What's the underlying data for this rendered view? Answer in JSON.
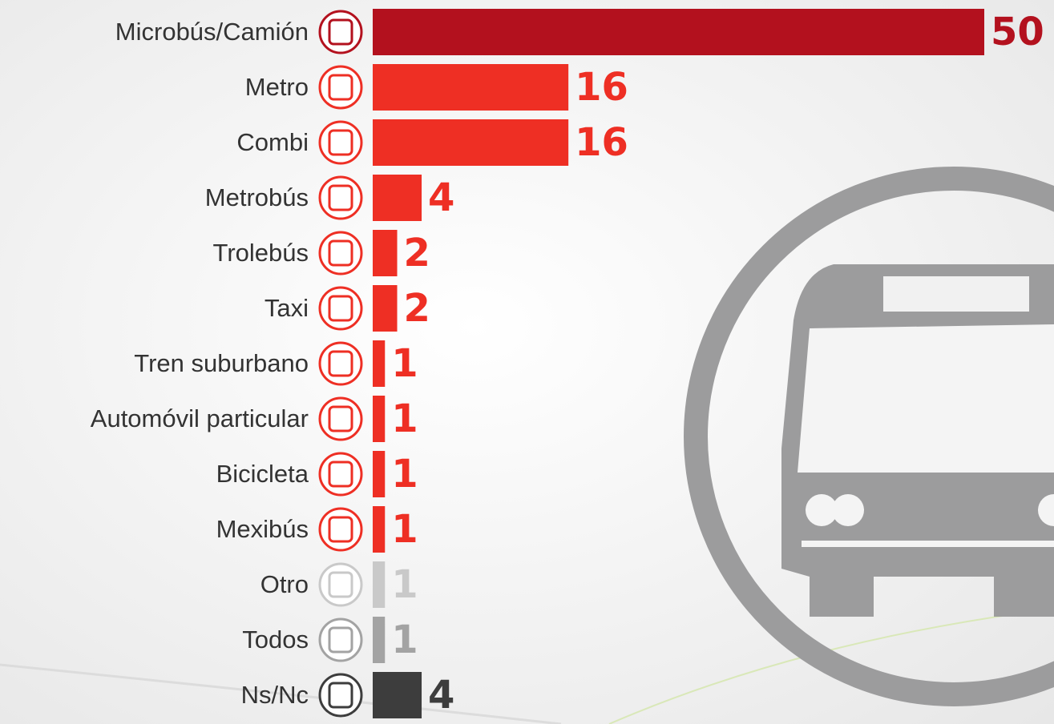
{
  "chart_data": {
    "type": "bar",
    "categories": [
      "Microbús/Camión",
      "Metro",
      "Combi",
      "Metrobús",
      "Trolebús",
      "Taxi",
      "Tren suburbano",
      "Automóvil particular",
      "Bicicleta",
      "Mexibús",
      "Otro",
      "Todos",
      "Ns/Nc"
    ],
    "values": [
      50,
      16,
      16,
      4,
      2,
      2,
      1,
      1,
      1,
      1,
      1,
      1,
      4
    ],
    "colors": [
      "#b3111e",
      "#ee2f24",
      "#ee2f24",
      "#ee2f24",
      "#ee2f24",
      "#ee2f24",
      "#ee2f24",
      "#ee2f24",
      "#ee2f24",
      "#ee2f24",
      "#c9c9c9",
      "#a3a3a3",
      "#3d3d3d"
    ]
  }
}
